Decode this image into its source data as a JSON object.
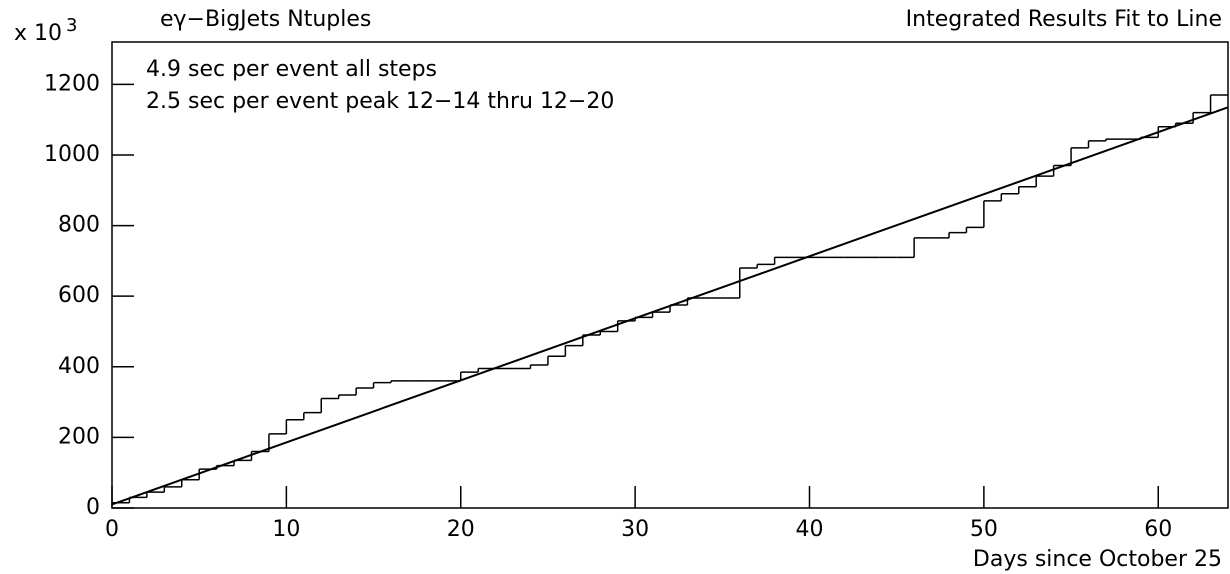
{
  "chart_data": {
    "type": "step-histogram",
    "title": "eγ−BigJets Ntuples",
    "subtitle": "Integrated Results Fit to Line",
    "y_multiplier": {
      "base": "x 10",
      "exponent": "3"
    },
    "x_label": "Days since October 25",
    "annotations": [
      "4.9 sec per event all steps",
      "2.5 sec per event peak 12−14 thru 12−20"
    ],
    "bins": [
      0,
      1,
      2,
      3,
      4,
      5,
      6,
      7,
      8,
      9,
      10,
      11,
      12,
      13,
      14,
      15,
      16,
      17,
      18,
      19,
      20,
      21,
      22,
      23,
      24,
      25,
      26,
      27,
      28,
      29,
      30,
      31,
      32,
      33,
      34,
      35,
      36,
      37,
      38,
      39,
      40,
      41,
      42,
      43,
      44,
      45,
      46,
      47,
      48,
      49,
      50,
      51,
      52,
      53,
      54,
      55,
      56,
      57,
      58,
      59,
      60,
      61,
      62,
      63,
      64
    ],
    "values": [
      15,
      30,
      45,
      60,
      80,
      110,
      120,
      135,
      160,
      210,
      250,
      270,
      310,
      320,
      340,
      355,
      360,
      360,
      360,
      360,
      385,
      395,
      395,
      395,
      405,
      430,
      460,
      490,
      500,
      530,
      540,
      555,
      575,
      595,
      595,
      595,
      680,
      690,
      710,
      710,
      710,
      710,
      710,
      710,
      710,
      710,
      765,
      765,
      780,
      795,
      870,
      890,
      910,
      940,
      970,
      1020,
      1040,
      1045,
      1045,
      1050,
      1080,
      1090,
      1120,
      1170
    ],
    "color": "#000000",
    "fit": {
      "x": [
        0,
        64
      ],
      "y": [
        10,
        1135
      ]
    },
    "xlim": [
      0,
      64
    ],
    "ylim": [
      0,
      1320
    ],
    "xticks": [
      0,
      10,
      20,
      30,
      40,
      50,
      60
    ],
    "yticks": [
      0,
      200,
      400,
      600,
      800,
      1000,
      1200
    ]
  }
}
